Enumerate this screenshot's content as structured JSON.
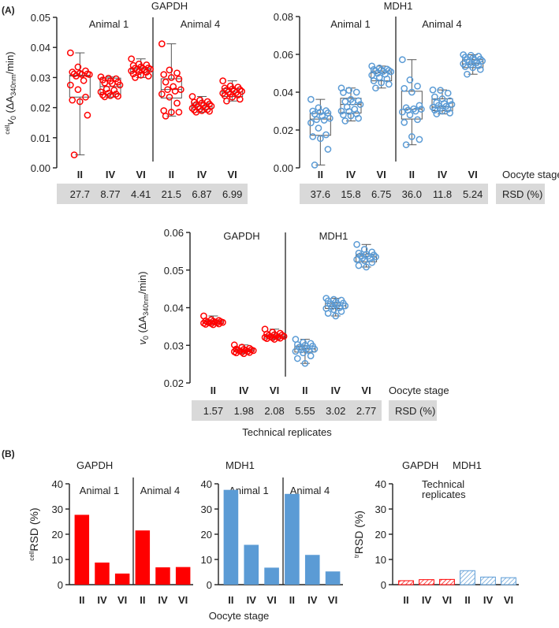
{
  "panel_labels": {
    "a": "(A)",
    "b": "(B)"
  },
  "labels": {
    "oocyte_stage": "Oocyte stage",
    "rsd": "RSD (%)",
    "technical_replicates": "Technical replicates",
    "technical_replicates_line1": "Technical",
    "technical_replicates_line2": "replicates",
    "animal1": "Animal 1",
    "animal4": "Animal 4",
    "ylabel_cell_v0_sup": "cell",
    "ylabel_cell_v0_main": "v",
    "ylabel_cell_v0_sub": "0",
    "ylabel_v0_rest": " (ΔA",
    "ylabel_sub340": "340nm",
    "ylabel_tail": "/min)",
    "ylabel_cellrsd_sup": "cell",
    "ylabel_trrsd_sup": "tr",
    "ylabel_rsd_main": "RSD (%)"
  },
  "colors": {
    "gapdh": "#ff0000",
    "mdh1": "#5b9bd5",
    "box": "#555555",
    "rsd_band": "#d9d9d9"
  },
  "chart_data": [
    {
      "id": "A-gapdh",
      "type": "box",
      "title": "GAPDH",
      "ylabel": "cellv0 (ΔA340nm/min)",
      "ylim": [
        0,
        0.05
      ],
      "yticks": [
        "0.00",
        "0.01",
        "0.02",
        "0.03",
        "0.04",
        "0.05"
      ],
      "groups": [
        "Animal 1",
        "Animal 4"
      ],
      "categories": [
        "II",
        "IV",
        "VI",
        "II",
        "IV",
        "VI"
      ],
      "series": "gapdh",
      "boxes": [
        {
          "min": 0.0043,
          "q1": 0.0235,
          "median": 0.0305,
          "q3": 0.0308,
          "max": 0.0382,
          "points": [
            0.0382,
            0.0335,
            0.0322,
            0.0318,
            0.0314,
            0.0312,
            0.0312,
            0.031,
            0.031,
            0.0305,
            0.029,
            0.0275,
            0.026,
            0.0235,
            0.0225,
            0.022,
            0.0175,
            0.0043
          ]
        },
        {
          "min": 0.0235,
          "q1": 0.0245,
          "median": 0.027,
          "q3": 0.0298,
          "max": 0.0302,
          "points": [
            0.0302,
            0.0298,
            0.0296,
            0.0292,
            0.0288,
            0.0285,
            0.0282,
            0.028,
            0.0275,
            0.0262,
            0.0258,
            0.0252,
            0.0248,
            0.0245,
            0.0242,
            0.024,
            0.0238,
            0.0236
          ]
        },
        {
          "min": 0.03,
          "q1": 0.0318,
          "median": 0.0328,
          "q3": 0.0332,
          "max": 0.0362,
          "points": [
            0.0362,
            0.0345,
            0.0342,
            0.034,
            0.0335,
            0.0332,
            0.0331,
            0.033,
            0.0328,
            0.0327,
            0.0326,
            0.0322,
            0.032,
            0.0318,
            0.0312,
            0.0308,
            0.0305,
            0.03
          ]
        },
        {
          "min": 0.0172,
          "q1": 0.0232,
          "median": 0.026,
          "q3": 0.0296,
          "max": 0.0412,
          "points": [
            0.0412,
            0.0325,
            0.0315,
            0.031,
            0.03,
            0.0295,
            0.0285,
            0.027,
            0.026,
            0.026,
            0.0255,
            0.0245,
            0.0235,
            0.0215,
            0.019,
            0.0185,
            0.0185,
            0.0172
          ]
        },
        {
          "min": 0.0185,
          "q1": 0.0195,
          "median": 0.0205,
          "q3": 0.0215,
          "max": 0.0237,
          "points": [
            0.0237,
            0.0225,
            0.022,
            0.0218,
            0.0215,
            0.0212,
            0.021,
            0.0208,
            0.0205,
            0.0202,
            0.02,
            0.0198,
            0.0196,
            0.0194,
            0.0192,
            0.019,
            0.0188,
            0.0185
          ]
        },
        {
          "min": 0.0222,
          "q1": 0.0237,
          "median": 0.0252,
          "q3": 0.0263,
          "max": 0.0289,
          "points": [
            0.0289,
            0.0272,
            0.0268,
            0.0265,
            0.0262,
            0.026,
            0.0258,
            0.0256,
            0.0254,
            0.0252,
            0.025,
            0.0248,
            0.0245,
            0.0242,
            0.024,
            0.0235,
            0.0228,
            0.0222
          ]
        }
      ],
      "rsd": [
        "27.7",
        "8.77",
        "4.41",
        "21.5",
        "6.87",
        "6.99"
      ]
    },
    {
      "id": "A-mdh1",
      "type": "box",
      "title": "MDH1",
      "ylim": [
        0,
        0.08
      ],
      "yticks": [
        "0.00",
        "0.02",
        "0.04",
        "0.06",
        "0.08"
      ],
      "groups": [
        "Animal 1",
        "Animal 4"
      ],
      "categories": [
        "II",
        "IV",
        "VI",
        "II",
        "IV",
        "VI"
      ],
      "series": "mdh1",
      "boxes": [
        {
          "min": 0.0015,
          "q1": 0.0172,
          "median": 0.0258,
          "q3": 0.0288,
          "max": 0.0362,
          "points": [
            0.0362,
            0.0318,
            0.0302,
            0.03,
            0.0295,
            0.029,
            0.0285,
            0.0275,
            0.0262,
            0.0255,
            0.0252,
            0.0238,
            0.021,
            0.0175,
            0.0165,
            0.0155,
            0.0098,
            0.0015
          ]
        },
        {
          "min": 0.0248,
          "q1": 0.029,
          "median": 0.0335,
          "q3": 0.0368,
          "max": 0.0422,
          "points": [
            0.0422,
            0.041,
            0.04,
            0.0398,
            0.0362,
            0.0355,
            0.035,
            0.0348,
            0.0335,
            0.0322,
            0.031,
            0.03,
            0.0298,
            0.0285,
            0.028,
            0.0275,
            0.0262,
            0.0248
          ]
        },
        {
          "min": 0.0422,
          "q1": 0.046,
          "median": 0.0502,
          "q3": 0.0512,
          "max": 0.0538,
          "points": [
            0.0538,
            0.0528,
            0.0522,
            0.052,
            0.0518,
            0.0515,
            0.0512,
            0.051,
            0.0508,
            0.05,
            0.0495,
            0.049,
            0.0478,
            0.047,
            0.046,
            0.045,
            0.0442,
            0.0422
          ]
        },
        {
          "min": 0.0122,
          "q1": 0.0258,
          "median": 0.031,
          "q3": 0.0405,
          "max": 0.0572,
          "points": [
            0.0572,
            0.0465,
            0.0432,
            0.042,
            0.04,
            0.033,
            0.0318,
            0.0312,
            0.031,
            0.0305,
            0.03,
            0.0295,
            0.028,
            0.0255,
            0.024,
            0.0165,
            0.015,
            0.0122
          ]
        },
        {
          "min": 0.0285,
          "q1": 0.0302,
          "median": 0.0322,
          "q3": 0.0365,
          "max": 0.0412,
          "points": [
            0.0412,
            0.041,
            0.0395,
            0.0375,
            0.0365,
            0.0355,
            0.0345,
            0.034,
            0.0335,
            0.033,
            0.0325,
            0.032,
            0.0315,
            0.031,
            0.0305,
            0.03,
            0.029,
            0.0285
          ]
        },
        {
          "min": 0.0495,
          "q1": 0.053,
          "median": 0.055,
          "q3": 0.0572,
          "max": 0.0598,
          "points": [
            0.0598,
            0.0595,
            0.059,
            0.0585,
            0.058,
            0.0575,
            0.0572,
            0.057,
            0.0565,
            0.056,
            0.0555,
            0.055,
            0.0545,
            0.054,
            0.0535,
            0.053,
            0.052,
            0.0495
          ]
        }
      ],
      "rsd": [
        "37.6",
        "15.8",
        "6.75",
        "36.0",
        "11.8",
        "5.24"
      ]
    },
    {
      "id": "A-technical",
      "type": "box",
      "ylabel": "v0 (ΔA340nm/min)",
      "ylim": [
        0.02,
        0.06
      ],
      "yticks": [
        "0.02",
        "0.03",
        "0.04",
        "0.05",
        "0.06"
      ],
      "groups": [
        "GAPDH",
        "MDH1"
      ],
      "categories": [
        "II",
        "IV",
        "VI",
        "II",
        "IV",
        "VI"
      ],
      "series": [
        "gapdh",
        "gapdh",
        "gapdh",
        "mdh1",
        "mdh1",
        "mdh1"
      ],
      "boxes": [
        {
          "min": 0.0355,
          "q1": 0.0358,
          "median": 0.0362,
          "q3": 0.0366,
          "max": 0.0378,
          "points": [
            0.0378,
            0.0368,
            0.0366,
            0.0365,
            0.0364,
            0.0363,
            0.0362,
            0.0362,
            0.0361,
            0.036,
            0.036,
            0.0359,
            0.0358,
            0.0357,
            0.0356,
            0.0355
          ]
        },
        {
          "min": 0.0278,
          "q1": 0.0283,
          "median": 0.0287,
          "q3": 0.029,
          "max": 0.0301,
          "points": [
            0.0301,
            0.0295,
            0.0292,
            0.029,
            0.0289,
            0.0288,
            0.0287,
            0.0287,
            0.0286,
            0.0285,
            0.0284,
            0.0283,
            0.0282,
            0.0281,
            0.028,
            0.0278
          ]
        },
        {
          "min": 0.0316,
          "q1": 0.0319,
          "median": 0.0324,
          "q3": 0.0328,
          "max": 0.0343,
          "points": [
            0.0343,
            0.0335,
            0.0332,
            0.033,
            0.0328,
            0.0327,
            0.0326,
            0.0325,
            0.0324,
            0.0323,
            0.0322,
            0.0321,
            0.032,
            0.0319,
            0.0318,
            0.0316
          ]
        },
        {
          "min": 0.0252,
          "q1": 0.0282,
          "median": 0.029,
          "q3": 0.0298,
          "max": 0.0316,
          "points": [
            0.0316,
            0.0308,
            0.0305,
            0.0302,
            0.03,
            0.0298,
            0.0295,
            0.0292,
            0.029,
            0.0288,
            0.0286,
            0.0284,
            0.028,
            0.0272,
            0.0265,
            0.0252
          ]
        },
        {
          "min": 0.0378,
          "q1": 0.0398,
          "median": 0.0405,
          "q3": 0.0412,
          "max": 0.0425,
          "points": [
            0.0425,
            0.0422,
            0.042,
            0.0418,
            0.0415,
            0.0412,
            0.041,
            0.0408,
            0.0405,
            0.0402,
            0.04,
            0.0398,
            0.0395,
            0.039,
            0.0385,
            0.0378
          ]
        },
        {
          "min": 0.0508,
          "q1": 0.0522,
          "median": 0.0537,
          "q3": 0.0542,
          "max": 0.0568,
          "points": [
            0.0568,
            0.0555,
            0.0548,
            0.0545,
            0.0542,
            0.054,
            0.0538,
            0.0537,
            0.0535,
            0.0532,
            0.053,
            0.0528,
            0.0525,
            0.052,
            0.0512,
            0.0508
          ]
        }
      ],
      "rsd": [
        "1.57",
        "1.98",
        "2.08",
        "5.55",
        "3.02",
        "2.77"
      ]
    },
    {
      "id": "B-gapdh",
      "type": "bar",
      "title": "GAPDH",
      "ylabel": "cellRSD (%)",
      "ylim": [
        0,
        40
      ],
      "yticks": [
        "0",
        "10",
        "20",
        "30",
        "40"
      ],
      "groups": [
        "Animal 1",
        "Animal 4"
      ],
      "categories": [
        "II",
        "IV",
        "VI",
        "II",
        "IV",
        "VI"
      ],
      "values": [
        27.7,
        8.77,
        4.41,
        21.5,
        6.87,
        6.99
      ],
      "series": "gapdh",
      "xlabel": "Oocyte stage"
    },
    {
      "id": "B-mdh1",
      "type": "bar",
      "title": "MDH1",
      "ylim": [
        0,
        40
      ],
      "yticks": [
        "0",
        "10",
        "20",
        "30",
        "40"
      ],
      "groups": [
        "Animal 1",
        "Animal 4"
      ],
      "categories": [
        "II",
        "IV",
        "VI",
        "II",
        "IV",
        "VI"
      ],
      "values": [
        37.6,
        15.8,
        6.75,
        36.0,
        11.8,
        5.24
      ],
      "series": "mdh1",
      "xlabel": "Oocyte stage"
    },
    {
      "id": "B-technical",
      "type": "bar",
      "title": "Technical replicates",
      "legend": [
        "GAPDH",
        "MDH1"
      ],
      "ylabel": "trRSD (%)",
      "ylim": [
        0,
        40
      ],
      "yticks": [
        "0",
        "10",
        "20",
        "30",
        "40"
      ],
      "categories": [
        "II",
        "IV",
        "VI",
        "II",
        "IV",
        "VI"
      ],
      "values": [
        1.57,
        1.98,
        2.08,
        5.55,
        3.02,
        2.77
      ],
      "series": [
        "gapdh",
        "gapdh",
        "gapdh",
        "mdh1",
        "mdh1",
        "mdh1"
      ],
      "pattern": "hatched"
    }
  ]
}
